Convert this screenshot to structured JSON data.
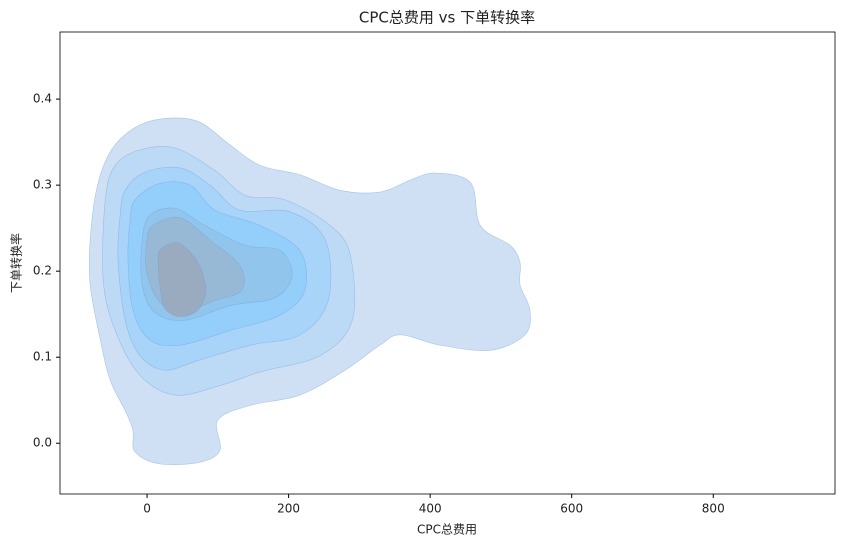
{
  "chart_data": {
    "type": "kde",
    "title": "CPC总费用 vs 下单转换率",
    "x_label": "CPC总费用",
    "y_label": "下单转换率",
    "xlim": [
      -123,
      972
    ],
    "ylim": [
      -0.059,
      0.478
    ],
    "xticks": [
      0,
      200,
      400,
      600,
      800
    ],
    "yticks": [
      {
        "value": 0,
        "label": "0.0"
      },
      0.1,
      0.2,
      0.3,
      0.4
    ],
    "contours": [
      {
        "color": "#cfe0f4",
        "x": [
          372,
          407,
          457,
          471,
          513,
          527,
          527,
          541,
          534,
          485,
          414,
          358,
          329,
          280,
          216,
          146,
          100,
          103,
          75,
          18,
          -17,
          -20,
          -31,
          -52,
          -66,
          -81,
          -78,
          -66,
          -45,
          -10,
          33,
          75,
          117,
          160,
          216,
          273,
          329
        ],
        "y": [
          0.306,
          0.314,
          0.303,
          0.253,
          0.23,
          0.21,
          0.184,
          0.155,
          0.126,
          0.108,
          0.114,
          0.126,
          0.114,
          0.085,
          0.056,
          0.044,
          0.027,
          -0.008,
          -0.022,
          -0.024,
          -0.01,
          0.015,
          0.038,
          0.073,
          0.12,
          0.19,
          0.259,
          0.312,
          0.347,
          0.37,
          0.378,
          0.373,
          0.347,
          0.323,
          0.312,
          0.294,
          0.292
        ]
      },
      {
        "color": "#bcdaf6",
        "x": [
          -59,
          -45,
          -10,
          40,
          96,
          139,
          195,
          259,
          287,
          290,
          245,
          160,
          103,
          40,
          -10,
          -45,
          -62
        ],
        "y": [
          0.283,
          0.323,
          0.341,
          0.343,
          0.317,
          0.288,
          0.283,
          0.253,
          0.219,
          0.143,
          0.102,
          0.083,
          0.067,
          0.056,
          0.079,
          0.131,
          0.19
        ]
      },
      {
        "color": "#a9d4fa",
        "x": [
          -31,
          -3,
          47,
          89,
          131,
          202,
          252,
          256,
          216,
          146,
          75,
          25,
          -10,
          -31,
          -41,
          -38
        ],
        "y": [
          0.294,
          0.315,
          0.32,
          0.3,
          0.271,
          0.269,
          0.236,
          0.166,
          0.126,
          0.114,
          0.097,
          0.085,
          0.102,
          0.143,
          0.213,
          0.265
        ]
      },
      {
        "color": "#94cffb",
        "x": [
          -17,
          18,
          61,
          96,
          160,
          216,
          223,
          188,
          117,
          47,
          4,
          -20,
          -27,
          -24
        ],
        "y": [
          0.283,
          0.302,
          0.3,
          0.271,
          0.253,
          0.224,
          0.178,
          0.149,
          0.131,
          0.114,
          0.12,
          0.155,
          0.213,
          0.259
        ]
      },
      {
        "color": "#92c5ec",
        "x": [
          4,
          40,
          82,
          139,
          188,
          205,
          181,
          117,
          54,
          11,
          -7,
          -7
        ],
        "y": [
          0.265,
          0.273,
          0.253,
          0.23,
          0.224,
          0.195,
          0.169,
          0.16,
          0.143,
          0.152,
          0.184,
          0.236
        ]
      },
      {
        "color": "#97b9d6",
        "x": [
          8,
          47,
          89,
          131,
          134,
          96,
          47,
          16,
          -1,
          0
        ],
        "y": [
          0.253,
          0.262,
          0.236,
          0.207,
          0.178,
          0.166,
          0.152,
          0.166,
          0.201,
          0.236
        ]
      },
      {
        "color": "#9aabc0",
        "x": [
          18,
          44,
          72,
          83,
          72,
          47,
          25,
          18,
          16
        ],
        "y": [
          0.224,
          0.233,
          0.21,
          0.178,
          0.155,
          0.147,
          0.157,
          0.184,
          0.207
        ]
      }
    ]
  }
}
